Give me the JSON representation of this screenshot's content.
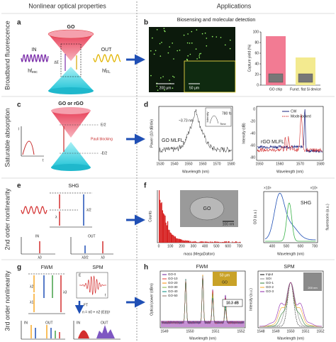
{
  "header": {
    "left": "Nonlinear optical properties",
    "right": "Applications"
  },
  "rows": [
    "Broadband fluorescence",
    "Saturable absorption",
    "2nd order nonlinearity",
    "3rd order nonlinearity"
  ],
  "panel_a": {
    "letter": "a",
    "material": "GO",
    "in": "IN",
    "out": "OUT",
    "gap": "ΔE",
    "in_energy": {
      "main": "hf",
      "sub": "exc"
    },
    "out_energy": {
      "main": "hf",
      "sub": "FL"
    }
  },
  "panel_b": {
    "letter": "b",
    "title": "Biosensing and molecular detection",
    "scale1": "200 μm",
    "scale2": "50 μm",
    "chart": {
      "type": "bar",
      "y_label": "Capture yield (%)",
      "categories": [
        "GO chip",
        "Funct. flat Si device"
      ],
      "values": [
        92,
        52
      ],
      "colors": [
        "#f27b93",
        "#f3ea8f"
      ],
      "ylim": [
        0,
        100
      ],
      "yticks": [
        0,
        20,
        40,
        60,
        80,
        100
      ]
    }
  },
  "panel_c": {
    "letter": "c",
    "material": "GO or rGO",
    "upper": "E/2",
    "lower": "-E/2",
    "blocking": "Pauli blocking",
    "i": "I",
    "t": "t"
  },
  "panel_d": {
    "letter": "d",
    "y_label": "Power (10 dB/div)",
    "width": "~3.73 nm",
    "pulse": "780 fs",
    "inset_y": "Intensity",
    "inset_x": "Time",
    "device": "GO MLFL",
    "x_label": "Wavelength (nm)",
    "xticks": [
      1530,
      1540,
      1550,
      1560,
      1570,
      1580
    ],
    "right": {
      "y_label": "Intensity (dB)",
      "legend": [
        "CW",
        "Mode-locked"
      ],
      "device": "rGO MLFL",
      "x_label": "Wavelength (nm)",
      "xticks": [
        1550,
        1560,
        1570,
        1580
      ],
      "yticks": [
        0,
        -20,
        -40,
        -60,
        -80
      ]
    }
  },
  "panel_e": {
    "letter": "e",
    "process": "SHG",
    "lambda": "λ",
    "half": "λ/2",
    "in": "IN",
    "out": "OUT",
    "l0": "λ0",
    "l0half": "λ0/2"
  },
  "panel_f": {
    "letter": "f",
    "y_label": "Counts",
    "x_label": "mass (MegaDalton)",
    "xticks": [
      0,
      100,
      200,
      300,
      400,
      500,
      600,
      700
    ],
    "inset": "GO",
    "scale": "100 nm",
    "right": {
      "mult_left": "×10⁸",
      "mult_right": "×10⁶",
      "process": "SHG",
      "y_label": "GO (a.u.)",
      "y2_label": "fluorescein (a.u.)",
      "x_label": "Wavelength (nm)",
      "xticks": [
        400,
        500,
        600,
        700
      ]
    }
  },
  "panel_g": {
    "letter": "g",
    "fwm": "FWM",
    "spm": "SPM",
    "l1": "λ1",
    "l2": "λ2",
    "l3": "λ3",
    "e": "E",
    "t": "t",
    "ft": "FT",
    "formula": "n = n0 + n2·|E(t)|²",
    "in1": "IN",
    "out1": "OUT",
    "in2": "IN",
    "out2": "OUT"
  },
  "panel_h": {
    "letter": "h",
    "fwm": "FWM",
    "y_label": "Optical power (dBm)",
    "legend": [
      "GO-0",
      "GO-10",
      "GO-20",
      "GO-30",
      "GO-40",
      "GO-50"
    ],
    "inset_scale": "50 μm",
    "inset_label": "GO",
    "gain": "10.3 dB",
    "x_label": "Wavelength (nm)",
    "xticks": [
      1549,
      1550,
      1551,
      1552
    ],
    "spm": "SPM",
    "spm_y_label": "Intensity (a.u.)",
    "spm_legend": [
      "Input",
      "SOI",
      "GO-1",
      "GO-2",
      "GO-3"
    ],
    "spm_scale": "200 nm",
    "spm_x_label": "Wavelength (nm)",
    "spm_xticks": [
      1548,
      1549,
      1550,
      1551,
      1552
    ]
  }
}
